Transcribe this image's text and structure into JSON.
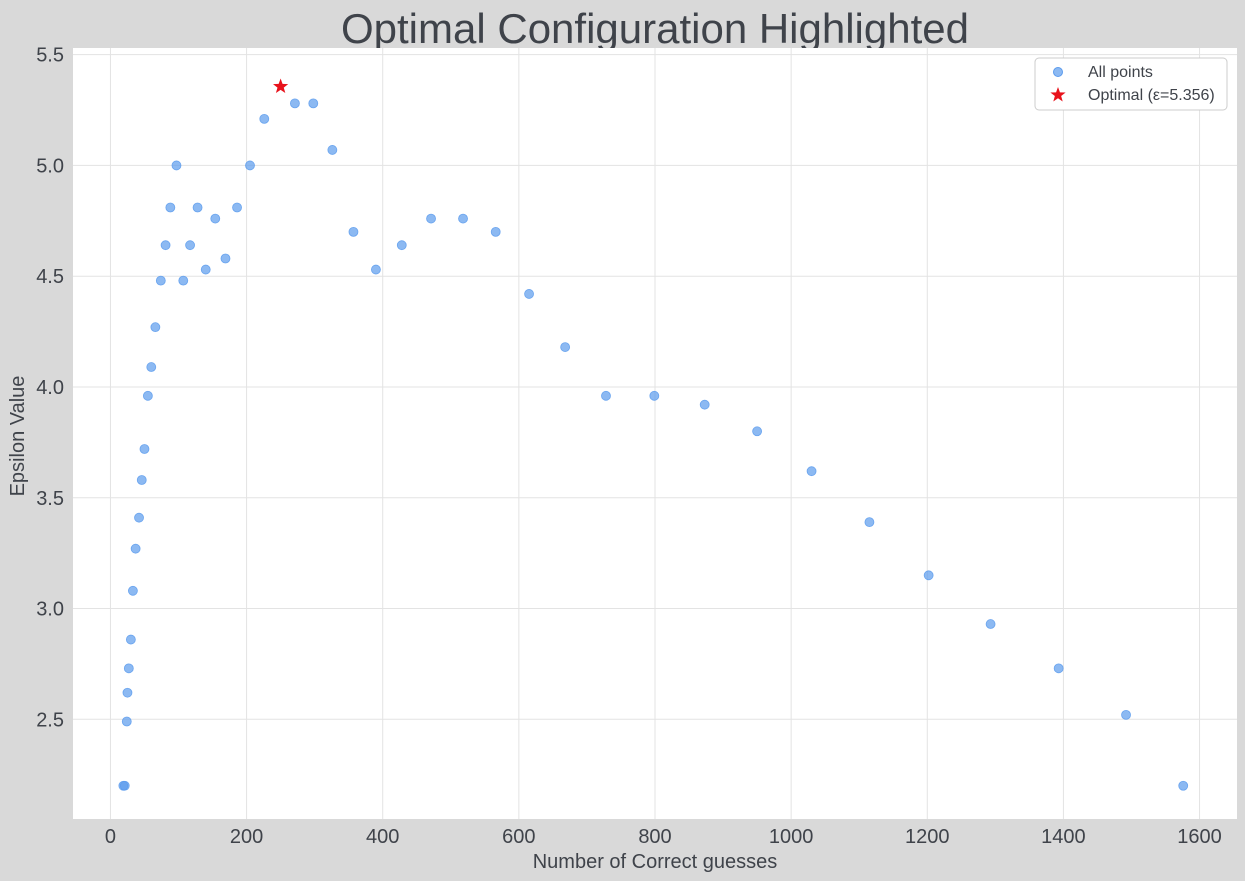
{
  "chart_data": {
    "type": "scatter",
    "title": "Optimal Configuration Highlighted",
    "xlabel": "Number of Correct guesses",
    "ylabel": "Epsilon Value",
    "xlim": [
      -55,
      1655
    ],
    "ylim": [
      2.05,
      5.53
    ],
    "xticks": [
      0,
      200,
      400,
      600,
      800,
      1000,
      1200,
      1400,
      1600
    ],
    "yticks": [
      2.5,
      3.0,
      3.5,
      4.0,
      4.5,
      5.0,
      5.5
    ],
    "xtick_labels": [
      "0",
      "200",
      "400",
      "600",
      "800",
      "1000",
      "1200",
      "1400",
      "1600"
    ],
    "ytick_labels": [
      "2.5",
      "3.0",
      "3.5",
      "4.0",
      "4.5",
      "5.0",
      "5.5"
    ],
    "grid": true,
    "legend_position": "top-right",
    "colors": {
      "points": "#5b9bed",
      "optimal": "#e8121b",
      "background": "#d9d9d9",
      "plot_bg": "#ffffff",
      "grid": "#e3e3e3"
    },
    "series": [
      {
        "name": "All points",
        "marker": "circle",
        "points": [
          [
            19,
            2.2
          ],
          [
            21,
            2.2
          ],
          [
            24,
            2.49
          ],
          [
            25,
            2.62
          ],
          [
            27,
            2.73
          ],
          [
            30,
            2.86
          ],
          [
            33,
            3.08
          ],
          [
            37,
            3.27
          ],
          [
            42,
            3.41
          ],
          [
            46,
            3.58
          ],
          [
            50,
            3.72
          ],
          [
            55,
            3.96
          ],
          [
            60,
            4.09
          ],
          [
            66,
            4.27
          ],
          [
            74,
            4.48
          ],
          [
            81,
            4.64
          ],
          [
            88,
            4.81
          ],
          [
            97,
            5.0
          ],
          [
            107,
            4.48
          ],
          [
            117,
            4.64
          ],
          [
            128,
            4.81
          ],
          [
            140,
            4.53
          ],
          [
            154,
            4.76
          ],
          [
            169,
            4.58
          ],
          [
            186,
            4.81
          ],
          [
            205,
            5.0
          ],
          [
            226,
            5.21
          ],
          [
            271,
            5.28
          ],
          [
            298,
            5.28
          ],
          [
            326,
            5.07
          ],
          [
            357,
            4.7
          ],
          [
            390,
            4.53
          ],
          [
            428,
            4.64
          ],
          [
            471,
            4.76
          ],
          [
            518,
            4.76
          ],
          [
            566,
            4.7
          ],
          [
            615,
            4.42
          ],
          [
            668,
            4.18
          ],
          [
            728,
            3.96
          ],
          [
            799,
            3.96
          ],
          [
            873,
            3.92
          ],
          [
            950,
            3.8
          ],
          [
            1030,
            3.62
          ],
          [
            1115,
            3.39
          ],
          [
            1202,
            3.15
          ],
          [
            1293,
            2.93
          ],
          [
            1393,
            2.73
          ],
          [
            1492,
            2.52
          ],
          [
            1576,
            2.2
          ]
        ]
      },
      {
        "name": "Optimal (ε=5.356)",
        "marker": "star",
        "points": [
          [
            250,
            5.356
          ]
        ]
      }
    ]
  }
}
